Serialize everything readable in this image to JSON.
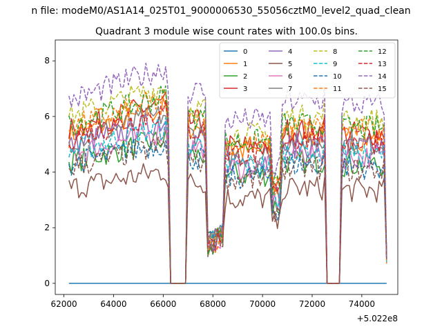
{
  "suptitle": "n file: modeM0/AS1A14_025T01_9000006530_55056cztM0_level2_quad_clean",
  "chart_data": {
    "type": "line",
    "title": "Quadrant 3 module wise count rates with 100.0s bins.",
    "xlabel": "",
    "ylabel": "",
    "x_offset_text": "+5.022e8",
    "xlim": [
      61650,
      75450
    ],
    "ylim": [
      -0.4,
      8.75
    ],
    "xticks": [
      62000,
      64000,
      66000,
      68000,
      70000,
      72000,
      74000
    ],
    "xtick_labels": [
      "62000",
      "64000",
      "66000",
      "68000",
      "70000",
      "72000",
      "74000"
    ],
    "yticks": [
      0,
      2,
      4,
      6,
      8
    ],
    "ytick_labels": [
      "0",
      "2",
      "4",
      "6",
      "8"
    ],
    "grid": false,
    "legend_position": "top-right",
    "legend_columns": 4,
    "series": [
      {
        "name": "0",
        "color": "#1f77b4",
        "dash": "solid",
        "base": 0
      },
      {
        "name": "1",
        "color": "#ff7f0e",
        "dash": "solid",
        "base": 5.6
      },
      {
        "name": "2",
        "color": "#2ca02c",
        "dash": "solid",
        "base": 4.6
      },
      {
        "name": "3",
        "color": "#d62728",
        "dash": "solid",
        "base": 5.8
      },
      {
        "name": "4",
        "color": "#9467bd",
        "dash": "solid",
        "base": 5.2
      },
      {
        "name": "5",
        "color": "#8c564b",
        "dash": "solid",
        "base": 3.6
      },
      {
        "name": "6",
        "color": "#e377c2",
        "dash": "solid",
        "base": 4.9
      },
      {
        "name": "7",
        "color": "#7f7f7f",
        "dash": "solid",
        "base": 5.4
      },
      {
        "name": "8",
        "color": "#bcbd22",
        "dash": "dashed",
        "base": 6.3
      },
      {
        "name": "9",
        "color": "#17becf",
        "dash": "dashed",
        "base": 5.0
      },
      {
        "name": "10",
        "color": "#1f77b4",
        "dash": "dashed",
        "base": 4.5
      },
      {
        "name": "11",
        "color": "#ff7f0e",
        "dash": "dashed",
        "base": 5.9
      },
      {
        "name": "12",
        "color": "#2ca02c",
        "dash": "dashed",
        "base": 6.0
      },
      {
        "name": "13",
        "color": "#d62728",
        "dash": "dashed",
        "base": 5.5
      },
      {
        "name": "14",
        "color": "#9467bd",
        "dash": "dashed",
        "base": 6.9
      },
      {
        "name": "15",
        "color": "#8c564b",
        "dash": "dashed",
        "base": 4.4
      }
    ],
    "time_profile": {
      "t_start": 62200,
      "t_end": 75000,
      "step": 100,
      "gaps": [
        [
          66200,
          67000
        ],
        [
          72500,
          73200
        ]
      ],
      "dip_region": [
        67700,
        68500
      ],
      "dip_level": 1.3
    }
  }
}
